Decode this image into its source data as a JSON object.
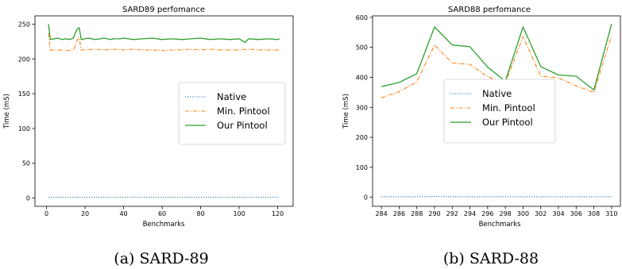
{
  "chart_data": [
    {
      "type": "line",
      "title": "SARD89 perfomance",
      "xlabel": "Benchmarks",
      "ylabel": "Time (mS)",
      "xlim": [
        -6,
        128
      ],
      "ylim": [
        -12,
        262
      ],
      "xticks": [
        0,
        20,
        40,
        60,
        80,
        100,
        120
      ],
      "yticks": [
        0,
        50,
        100,
        150,
        200,
        250
      ],
      "legend_position": "center-right",
      "caption": "(a) SARD-89",
      "series": [
        {
          "name": "Native",
          "style": "dotted",
          "color": "#1f77b4",
          "x": [
            1,
            30,
            60,
            90,
            121
          ],
          "y": [
            1,
            1,
            1,
            1,
            1
          ]
        },
        {
          "name": "Min. Pintool",
          "style": "dashdot",
          "color": "#ff7f0e",
          "x": [
            1,
            2,
            3,
            6,
            10,
            14,
            16,
            17,
            18,
            20,
            25,
            30,
            35,
            40,
            45,
            50,
            55,
            60,
            65,
            70,
            75,
            80,
            85,
            90,
            95,
            100,
            105,
            110,
            115,
            120,
            121
          ],
          "y": [
            237,
            213,
            213,
            213,
            212,
            213,
            228,
            230,
            213,
            213,
            214,
            213,
            214,
            213,
            214,
            213,
            213,
            212,
            213,
            213,
            214,
            213,
            214,
            213,
            213,
            213,
            214,
            213,
            213,
            213,
            213
          ]
        },
        {
          "name": "Our Pintool",
          "style": "solid",
          "color": "#2ca02c",
          "x": [
            1,
            2,
            4,
            6,
            8,
            10,
            12,
            14,
            15,
            16,
            17,
            18,
            20,
            22,
            25,
            28,
            30,
            33,
            35,
            38,
            40,
            45,
            50,
            55,
            60,
            65,
            70,
            75,
            80,
            85,
            90,
            95,
            100,
            103,
            105,
            110,
            115,
            120,
            121
          ],
          "y": [
            250,
            228,
            229,
            230,
            228,
            229,
            228,
            230,
            238,
            243,
            245,
            228,
            229,
            230,
            228,
            229,
            230,
            228,
            229,
            229,
            230,
            228,
            229,
            230,
            228,
            229,
            228,
            229,
            230,
            228,
            229,
            228,
            229,
            224,
            229,
            228,
            229,
            228,
            229
          ]
        }
      ]
    },
    {
      "type": "line",
      "title": "SARD88 perfomance",
      "xlabel": "Benchmarks",
      "ylabel": "Time (mS)",
      "xlim": [
        283.0,
        311.0
      ],
      "ylim": [
        -30,
        605
      ],
      "xticks": [
        284,
        286,
        288,
        290,
        292,
        294,
        296,
        298,
        300,
        302,
        304,
        306,
        308,
        310
      ],
      "yticks": [
        0,
        100,
        200,
        300,
        400,
        500,
        600
      ],
      "legend_position": "center",
      "caption": "(b) SARD-88",
      "series": [
        {
          "name": "Native",
          "style": "dotted",
          "color": "#1f77b4",
          "x": [
            284,
            286,
            288,
            290,
            292,
            294,
            296,
            298,
            300,
            302,
            304,
            306,
            308,
            310
          ],
          "y": [
            2,
            2,
            2,
            3,
            2,
            2,
            2,
            2,
            2,
            2,
            2,
            2,
            2,
            2
          ]
        },
        {
          "name": "Min. Pintool",
          "style": "dashdot",
          "color": "#ff7f0e",
          "x": [
            284,
            286,
            288,
            290,
            292,
            294,
            296,
            298,
            300,
            302,
            304,
            306,
            308,
            310
          ],
          "y": [
            332,
            352,
            385,
            508,
            448,
            443,
            402,
            380,
            536,
            404,
            398,
            372,
            350,
            540
          ]
        },
        {
          "name": "Our Pintool",
          "style": "solid",
          "color": "#2ca02c",
          "x": [
            284,
            286,
            288,
            290,
            292,
            294,
            296,
            298,
            300,
            302,
            304,
            306,
            308,
            310
          ],
          "y": [
            369,
            383,
            412,
            568,
            508,
            502,
            434,
            387,
            568,
            436,
            408,
            404,
            358,
            578
          ]
        }
      ]
    }
  ]
}
